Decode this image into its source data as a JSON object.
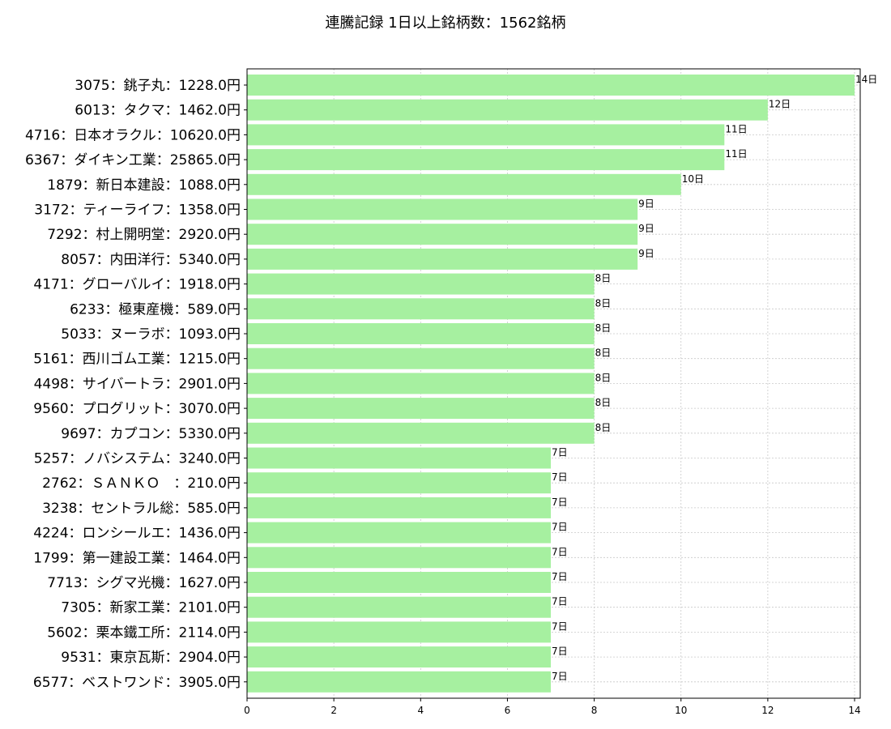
{
  "chart_data": {
    "type": "bar",
    "orientation": "horizontal",
    "title": "連騰記録  1日以上銘柄数：1562銘柄",
    "xlabel": "",
    "ylabel": "",
    "xlim": [
      0,
      14.13
    ],
    "xticks": [
      0,
      2,
      4,
      6,
      8,
      10,
      12,
      14
    ],
    "grid": true,
    "bar_color": "#a6f0a0",
    "value_suffix": "日",
    "categories": [
      "3075：銚子丸：1228.0円",
      "6013：タクマ：1462.0円",
      "4716：日本オラクル：10620.0円",
      "6367：ダイキン工業：25865.0円",
      "1879：新日本建設：1088.0円",
      "3172：ティーライフ：1358.0円",
      "7292：村上開明堂：2920.0円",
      "8057：内田洋行：5340.0円",
      "4171：グローバルイ：1918.0円",
      "6233：極東産機：589.0円",
      "5033：ヌーラボ：1093.0円",
      "5161：西川ゴム工業：1215.0円",
      "4498：サイバートラ：2901.0円",
      "9560：プログリット：3070.0円",
      "9697：カプコン：5330.0円",
      "5257：ノバシステム：3240.0円",
      "2762：ＳＡＮＫＯ　：210.0円",
      "3238：セントラル総：585.0円",
      "4224：ロンシールエ：1436.0円",
      "1799：第一建設工業：1464.0円",
      "7713：シグマ光機：1627.0円",
      "7305：新家工業：2101.0円",
      "5602：栗本鐵工所：2114.0円",
      "9531：東京瓦斯：2904.0円",
      "6577：ベストワンド：3905.0円"
    ],
    "values": [
      14,
      12,
      11,
      11,
      10,
      9,
      9,
      9,
      8,
      8,
      8,
      8,
      8,
      8,
      8,
      7,
      7,
      7,
      7,
      7,
      7,
      7,
      7,
      7,
      7
    ],
    "data_labels": [
      "14日",
      "12日",
      "11日",
      "11日",
      "10日",
      "9日",
      "9日",
      "9日",
      "8日",
      "8日",
      "8日",
      "8日",
      "8日",
      "8日",
      "8日",
      "7日",
      "7日",
      "7日",
      "7日",
      "7日",
      "7日",
      "7日",
      "7日",
      "7日",
      "7日"
    ]
  }
}
